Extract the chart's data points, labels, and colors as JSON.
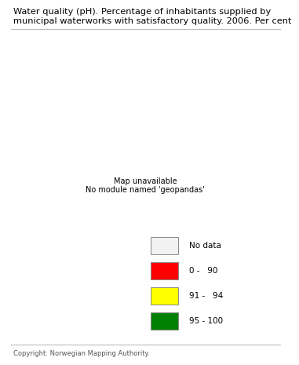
{
  "title_line1": "Water quality (pH). Percentage of inhabitants supplied by",
  "title_line2": "municipal waterworks with satisfactory quality. 2006. Per cent",
  "title_fontsize": 8.2,
  "copyright_text": "Copyright: Norwegian Mapping Authority.",
  "legend_labels": [
    "No data",
    "0 -   90",
    "91 -   94",
    "95 - 100"
  ],
  "legend_colors": [
    "#f2f2f2",
    "#ff0000",
    "#ffff00",
    "#008000"
  ],
  "legend_edgecolor": "#888888",
  "background_color": "#ffffff",
  "title_color": "#000000",
  "separator_color": "#bbbbbb",
  "map_edge_color": "#555555",
  "map_bg_color": "#ffffff"
}
